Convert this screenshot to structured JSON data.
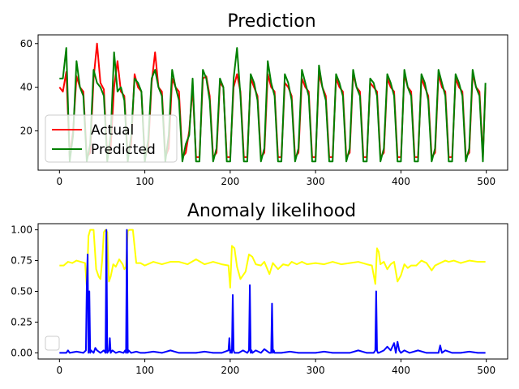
{
  "chart_data": [
    {
      "type": "line",
      "title": "Prediction",
      "xlabel": "",
      "ylabel": "",
      "xlim": [
        -25,
        525
      ],
      "ylim": [
        2,
        64
      ],
      "xticks": [
        0,
        100,
        200,
        300,
        400,
        500
      ],
      "yticks": [
        20,
        40,
        60
      ],
      "legend": {
        "placement": "lower-left",
        "entries": [
          "Actual",
          "Predicted"
        ]
      },
      "series": [
        {
          "name": "Actual",
          "color": "#ff0000",
          "description_points": "approximate periodic signal, ~24 steps/period, roughly 5-60",
          "x": [
            0,
            4,
            8,
            12,
            16,
            20,
            24,
            28,
            32,
            36,
            40,
            44,
            48,
            52,
            56,
            60,
            64,
            68,
            72,
            76,
            80,
            84,
            88,
            92,
            96,
            100,
            104,
            108,
            112,
            116,
            120,
            124,
            128,
            132,
            136,
            140,
            144,
            148,
            152,
            156,
            160,
            164,
            168,
            172,
            176,
            180,
            184,
            188,
            192,
            196,
            200,
            204,
            208,
            212,
            216,
            220,
            224,
            228,
            232,
            236,
            240,
            244,
            248,
            252,
            256,
            260,
            264,
            268,
            272,
            276,
            280,
            284,
            288,
            292,
            296,
            300,
            304,
            308,
            312,
            316,
            320,
            324,
            328,
            332,
            336,
            340,
            344,
            348,
            352,
            356,
            360,
            364,
            368,
            372,
            376,
            380,
            384,
            388,
            392,
            396,
            400,
            404,
            408,
            412,
            416,
            420,
            424,
            428,
            432,
            436,
            440,
            444,
            448,
            452,
            456,
            460,
            464,
            468,
            472,
            476,
            480,
            484,
            488,
            492,
            496,
            499
          ],
          "y": [
            40,
            38,
            47,
            8,
            20,
            45,
            40,
            38,
            8,
            10,
            44,
            60,
            42,
            39,
            8,
            12,
            40,
            52,
            38,
            36,
            8,
            14,
            46,
            40,
            38,
            8,
            12,
            42,
            56,
            40,
            38,
            8,
            12,
            44,
            40,
            38,
            8,
            10,
            20,
            40,
            8,
            8,
            44,
            45,
            36,
            8,
            10,
            42,
            40,
            8,
            8,
            40,
            46,
            38,
            8,
            8,
            44,
            40,
            36,
            8,
            10,
            46,
            40,
            38,
            8,
            8,
            42,
            40,
            36,
            8,
            10,
            44,
            40,
            38,
            8,
            8,
            46,
            40,
            36,
            8,
            8,
            44,
            40,
            38,
            8,
            10,
            46,
            40,
            38,
            8,
            8,
            42,
            40,
            38,
            8,
            10,
            44,
            40,
            38,
            8,
            8,
            46,
            40,
            38,
            8,
            8,
            44,
            40,
            36,
            8,
            10,
            46,
            40,
            38,
            8,
            8,
            44,
            40,
            38,
            8,
            10,
            46,
            40,
            38,
            8,
            40
          ]
        },
        {
          "name": "Predicted",
          "color": "#008000",
          "x": [
            0,
            4,
            8,
            12,
            16,
            20,
            24,
            28,
            32,
            36,
            40,
            44,
            48,
            52,
            56,
            60,
            64,
            68,
            72,
            76,
            80,
            84,
            88,
            92,
            96,
            100,
            104,
            108,
            112,
            116,
            120,
            124,
            128,
            132,
            136,
            140,
            144,
            148,
            152,
            156,
            160,
            164,
            168,
            172,
            176,
            180,
            184,
            188,
            192,
            196,
            200,
            204,
            208,
            212,
            216,
            220,
            224,
            228,
            232,
            236,
            240,
            244,
            248,
            252,
            256,
            260,
            264,
            268,
            272,
            276,
            280,
            284,
            288,
            292,
            296,
            300,
            304,
            308,
            312,
            316,
            320,
            324,
            328,
            332,
            336,
            340,
            344,
            348,
            352,
            356,
            360,
            364,
            368,
            372,
            376,
            380,
            384,
            388,
            392,
            396,
            400,
            404,
            408,
            412,
            416,
            420,
            424,
            428,
            432,
            436,
            440,
            444,
            448,
            452,
            456,
            460,
            464,
            468,
            472,
            476,
            480,
            484,
            488,
            492,
            496,
            499
          ],
          "y": [
            44,
            44,
            58,
            6,
            18,
            52,
            40,
            36,
            6,
            14,
            48,
            42,
            40,
            36,
            6,
            18,
            56,
            38,
            40,
            34,
            6,
            18,
            44,
            42,
            38,
            6,
            16,
            44,
            48,
            40,
            36,
            6,
            18,
            48,
            40,
            34,
            6,
            14,
            18,
            44,
            6,
            6,
            48,
            44,
            34,
            6,
            12,
            44,
            40,
            6,
            6,
            44,
            58,
            36,
            6,
            6,
            46,
            42,
            34,
            6,
            12,
            52,
            42,
            36,
            6,
            6,
            46,
            42,
            34,
            6,
            12,
            48,
            42,
            36,
            6,
            6,
            50,
            40,
            34,
            6,
            6,
            46,
            42,
            36,
            6,
            12,
            48,
            40,
            36,
            6,
            6,
            44,
            42,
            36,
            6,
            12,
            46,
            42,
            36,
            6,
            6,
            48,
            40,
            36,
            6,
            6,
            46,
            42,
            34,
            6,
            12,
            48,
            42,
            36,
            6,
            6,
            46,
            42,
            36,
            6,
            12,
            48,
            40,
            36,
            6,
            42
          ]
        }
      ]
    },
    {
      "type": "line",
      "title": "Anomaly likelihood",
      "xlabel": "",
      "ylabel": "",
      "xlim": [
        -25,
        525
      ],
      "ylim": [
        -0.05,
        1.05
      ],
      "xticks": [
        0,
        100,
        200,
        300,
        400,
        500
      ],
      "yticks": [
        0.0,
        0.25,
        0.5,
        0.75,
        1.0
      ],
      "ytick_labels": [
        "0.00",
        "0.25",
        "0.50",
        "0.75",
        "1.00"
      ],
      "legend": {
        "placement": "lower-left",
        "entries": []
      },
      "series": [
        {
          "color": "#ffff00",
          "x": [
            0,
            5,
            10,
            15,
            20,
            25,
            30,
            32,
            34,
            36,
            40,
            43,
            46,
            48,
            50,
            52,
            54,
            56,
            58,
            60,
            63,
            66,
            70,
            74,
            76,
            78,
            80,
            82,
            86,
            90,
            95,
            100,
            110,
            120,
            130,
            140,
            150,
            160,
            170,
            180,
            190,
            198,
            200,
            202,
            205,
            208,
            212,
            218,
            222,
            226,
            230,
            236,
            240,
            246,
            250,
            256,
            262,
            268,
            272,
            278,
            284,
            290,
            300,
            310,
            320,
            330,
            340,
            350,
            360,
            366,
            370,
            372,
            374,
            376,
            380,
            384,
            388,
            392,
            396,
            400,
            404,
            408,
            412,
            418,
            424,
            430,
            436,
            440,
            446,
            452,
            456,
            462,
            470,
            480,
            490,
            496,
            499
          ],
          "y": [
            0.71,
            0.71,
            0.74,
            0.73,
            0.75,
            0.74,
            0.73,
            0.54,
            0.95,
            1.0,
            1.0,
            0.68,
            0.62,
            0.6,
            0.75,
            0.98,
            1.0,
            0.98,
            0.58,
            0.62,
            0.72,
            0.7,
            0.76,
            0.72,
            0.68,
            0.7,
            0.99,
            1.0,
            1.0,
            0.73,
            0.73,
            0.71,
            0.74,
            0.72,
            0.74,
            0.74,
            0.72,
            0.76,
            0.72,
            0.74,
            0.72,
            0.71,
            0.53,
            0.87,
            0.85,
            0.7,
            0.6,
            0.66,
            0.8,
            0.78,
            0.72,
            0.71,
            0.74,
            0.64,
            0.73,
            0.68,
            0.72,
            0.71,
            0.74,
            0.72,
            0.74,
            0.72,
            0.73,
            0.72,
            0.74,
            0.72,
            0.73,
            0.74,
            0.72,
            0.71,
            0.56,
            0.85,
            0.82,
            0.72,
            0.74,
            0.68,
            0.72,
            0.74,
            0.58,
            0.63,
            0.72,
            0.69,
            0.71,
            0.71,
            0.75,
            0.73,
            0.67,
            0.71,
            0.73,
            0.75,
            0.74,
            0.75,
            0.73,
            0.75,
            0.74,
            0.74,
            0.74
          ]
        },
        {
          "color": "#0000ff",
          "x": [
            0,
            8,
            10,
            12,
            20,
            28,
            31,
            32,
            33,
            34,
            35,
            36,
            37,
            40,
            42,
            44,
            48,
            52,
            54,
            55,
            56,
            58,
            59,
            60,
            62,
            66,
            70,
            75,
            77,
            78,
            79,
            80,
            81,
            84,
            90,
            95,
            100,
            110,
            120,
            130,
            140,
            150,
            160,
            170,
            180,
            190,
            198,
            199,
            200,
            201,
            202,
            203,
            204,
            205,
            210,
            215,
            220,
            222,
            223,
            224,
            225,
            226,
            230,
            236,
            240,
            246,
            248,
            249,
            250,
            251,
            252,
            260,
            270,
            280,
            290,
            300,
            310,
            320,
            330,
            340,
            350,
            360,
            368,
            370,
            371,
            372,
            373,
            374,
            380,
            384,
            388,
            392,
            394,
            396,
            398,
            400,
            404,
            410,
            420,
            430,
            440,
            444,
            446,
            448,
            452,
            460,
            470,
            480,
            490,
            499
          ],
          "y": [
            0.0,
            0.0,
            0.02,
            0.0,
            0.01,
            0.0,
            0.02,
            0.55,
            0.8,
            0.0,
            0.5,
            0.0,
            0.02,
            0.0,
            0.04,
            0.02,
            0.0,
            0.02,
            0.0,
            1.0,
            0.0,
            0.02,
            0.12,
            0.0,
            0.02,
            0.0,
            0.01,
            0.0,
            0.02,
            0.0,
            1.0,
            0.0,
            0.02,
            0.0,
            0.01,
            0.0,
            0.0,
            0.01,
            0.0,
            0.02,
            0.0,
            0.0,
            0.0,
            0.01,
            0.0,
            0.0,
            0.02,
            0.12,
            0.0,
            0.02,
            0.0,
            0.47,
            0.02,
            0.0,
            0.0,
            0.02,
            0.0,
            0.02,
            0.55,
            0.0,
            0.02,
            0.0,
            0.02,
            0.0,
            0.03,
            0.0,
            0.0,
            0.4,
            0.0,
            0.02,
            0.0,
            0.0,
            0.01,
            0.0,
            0.0,
            0.0,
            0.01,
            0.0,
            0.0,
            0.0,
            0.02,
            0.0,
            0.0,
            0.02,
            0.5,
            0.02,
            0.0,
            0.0,
            0.02,
            0.05,
            0.02,
            0.08,
            0.0,
            0.09,
            0.02,
            0.0,
            0.02,
            0.0,
            0.02,
            0.0,
            0.0,
            0.0,
            0.06,
            0.0,
            0.02,
            0.0,
            0.0,
            0.01,
            0.0,
            0.0
          ]
        }
      ]
    }
  ]
}
